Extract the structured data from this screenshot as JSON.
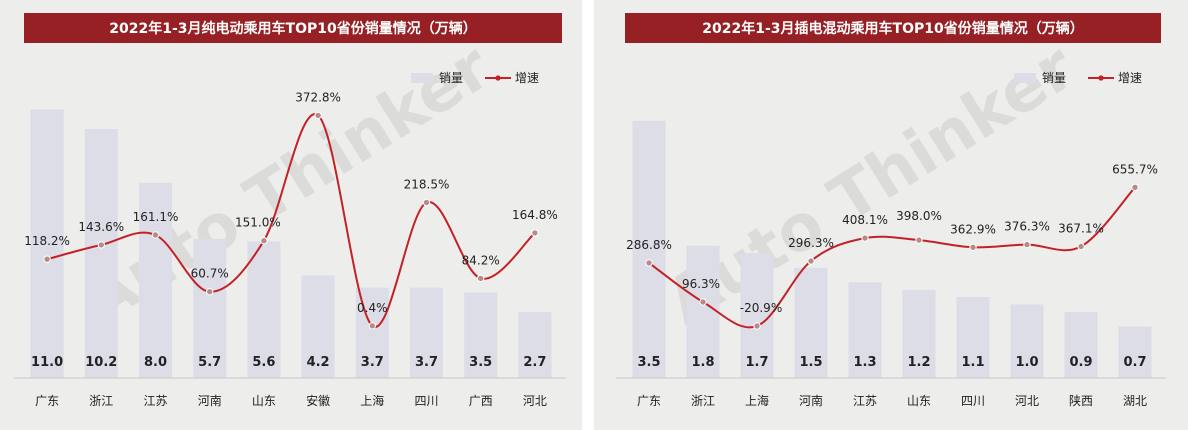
{
  "colors": {
    "title_bg": "#962024",
    "bar": "#dcdde6",
    "line": "#c42126",
    "marker_fill": "#b88a8a",
    "background": "#ededeb"
  },
  "chart_data": [
    {
      "type": "bar",
      "title": "2022年1-3月纯电动乘用车TOP10省份销量情况（万辆）",
      "categories": [
        "广东",
        "浙江",
        "江苏",
        "河南",
        "山东",
        "安徽",
        "上海",
        "四川",
        "广西",
        "河北"
      ],
      "series": [
        {
          "name": "销量",
          "type": "bar",
          "values": [
            11.0,
            10.2,
            8.0,
            5.7,
            5.6,
            4.2,
            3.7,
            3.7,
            3.5,
            2.7
          ]
        },
        {
          "name": "增速",
          "type": "line",
          "values": [
            118.2,
            143.6,
            161.1,
            60.7,
            151.0,
            372.8,
            0.4,
            218.5,
            84.2,
            164.8
          ],
          "unit": "%"
        }
      ],
      "bar_labels": [
        "11.0",
        "10.2",
        "8.0",
        "5.7",
        "5.6",
        "4.2",
        "3.7",
        "3.7",
        "3.5",
        "2.7"
      ],
      "line_labels": [
        "118.2%",
        "143.6%",
        "161.1%",
        "60.7%",
        "151.0%",
        "372.8%",
        "0.4%",
        "218.5%",
        "84.2%",
        "164.8%"
      ],
      "legend": [
        "销量",
        "增速"
      ],
      "legend_position": "top-right",
      "grid": false
    },
    {
      "type": "bar",
      "title": "2022年1-3月插电混动乘用车TOP10省份销量情况（万辆）",
      "categories": [
        "广东",
        "浙江",
        "上海",
        "河南",
        "江苏",
        "山东",
        "四川",
        "河北",
        "陕西",
        "湖北"
      ],
      "series": [
        {
          "name": "销量",
          "type": "bar",
          "values": [
            3.5,
            1.8,
            1.7,
            1.5,
            1.3,
            1.2,
            1.1,
            1.0,
            0.9,
            0.7
          ]
        },
        {
          "name": "增速",
          "type": "line",
          "values": [
            286.8,
            96.3,
            -20.9,
            296.3,
            408.1,
            398.0,
            362.9,
            376.3,
            367.1,
            655.7
          ],
          "unit": "%"
        }
      ],
      "bar_labels": [
        "3.5",
        "1.8",
        "1.7",
        "1.5",
        "1.3",
        "1.2",
        "1.1",
        "1.0",
        "0.9",
        "0.7"
      ],
      "line_labels": [
        "286.8%",
        "96.3%",
        "-20.9%",
        "296.3%",
        "408.1%",
        "398.0%",
        "362.9%",
        "376.3%",
        "367.1%",
        "655.7%"
      ],
      "legend": [
        "销量",
        "增速"
      ],
      "legend_position": "top-right",
      "grid": false
    }
  ]
}
